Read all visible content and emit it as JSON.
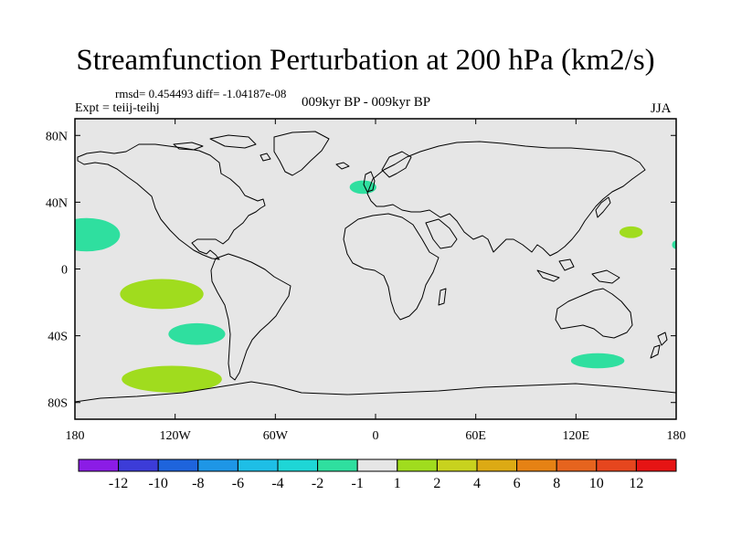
{
  "header": {
    "title": "Streamfunction Perturbation at 200 hPa (km2/s)",
    "stats": "rmsd= 0.454493 diff= -1.04187e-08",
    "expt": "Expt = teiij-teihj",
    "period": "009kyr BP - 009kyr BP",
    "season": "JJA"
  },
  "chart_data": {
    "type": "heatmap",
    "title": "Streamfunction Perturbation at 200 hPa (km2/s)",
    "xlabel": "",
    "ylabel": "",
    "xlim": [
      -180,
      180
    ],
    "ylim": [
      -90,
      90
    ],
    "x_ticks": [
      {
        "value": -180,
        "label": "180"
      },
      {
        "value": -120,
        "label": "120W"
      },
      {
        "value": -60,
        "label": "60W"
      },
      {
        "value": 0,
        "label": "0"
      },
      {
        "value": 60,
        "label": "60E"
      },
      {
        "value": 120,
        "label": "120E"
      },
      {
        "value": 180,
        "label": "180"
      }
    ],
    "y_ticks": [
      {
        "value": 80,
        "label": "80N"
      },
      {
        "value": 40,
        "label": "40N"
      },
      {
        "value": 0,
        "label": "0"
      },
      {
        "value": -40,
        "label": "40S"
      },
      {
        "value": -80,
        "label": "80S"
      }
    ],
    "background_band": "-1 to 1",
    "regions": [
      {
        "lon": -173,
        "lat": 20.5,
        "rlon": 20,
        "rlat": 10,
        "level": "-2 to -1",
        "color": "#2fdf9f"
      },
      {
        "lon": -128,
        "lat": -15,
        "rlon": 25,
        "rlat": 9,
        "level": "1 to 2",
        "color": "#a0dc1e"
      },
      {
        "lon": -107,
        "lat": -39,
        "rlon": 17,
        "rlat": 6.5,
        "level": "-2 to -1",
        "color": "#2fdf9f"
      },
      {
        "lon": -122,
        "lat": -66,
        "rlon": 30,
        "rlat": 8,
        "level": "1 to 2",
        "color": "#a0dc1e"
      },
      {
        "lon": -7.5,
        "lat": 49,
        "rlon": 8,
        "rlat": 4,
        "level": "-2 to -1",
        "color": "#2fdf9f"
      },
      {
        "lon": 153,
        "lat": 22,
        "rlon": 7,
        "rlat": 3.5,
        "level": "1 to 2",
        "color": "#a0dc1e"
      },
      {
        "lon": 180,
        "lat": 14.5,
        "rlon": 2.5,
        "rlat": 2.5,
        "level": "-2 to -1",
        "color": "#2fdf9f"
      },
      {
        "lon": 133,
        "lat": -55,
        "rlon": 16,
        "rlat": 4.5,
        "level": "-2 to -1",
        "color": "#2fdf9f"
      }
    ]
  },
  "colorbar": {
    "labels": [
      "-12",
      "-10",
      "-8",
      "-6",
      "-4",
      "-2",
      "-1",
      "1",
      "2",
      "4",
      "6",
      "8",
      "10",
      "12"
    ],
    "colors": [
      "#8b1ce6",
      "#3c3cd8",
      "#1e64dc",
      "#1e96e6",
      "#1ebee6",
      "#1ed6d6",
      "#2fdf9f",
      "#e6e6e6",
      "#a0dc1e",
      "#c8d21e",
      "#dcaa14",
      "#e68214",
      "#e6641e",
      "#e6461e",
      "#e61414"
    ]
  }
}
